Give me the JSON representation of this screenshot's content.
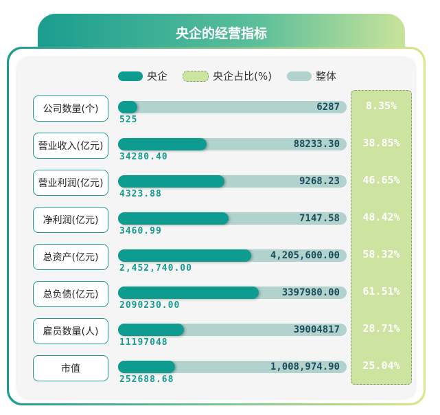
{
  "chart_data": {
    "type": "bar",
    "title": "央企的经营指标",
    "legend": [
      "央企",
      "央企占比(%)",
      "整体"
    ],
    "legend_placement": "top",
    "categories": [
      "公司数量(个)",
      "营业收入(亿元)",
      "营业利润(亿元)",
      "净利润(亿元)",
      "总资产(亿元)",
      "总负债(亿元)",
      "雇员数量(人)",
      "市值"
    ],
    "series": [
      {
        "name": "央企",
        "values": [
          "525",
          "34280.40",
          "4323.88",
          "3460.99",
          "2,452,740.00",
          "2090230.00",
          "11197048",
          "252688.68"
        ]
      },
      {
        "name": "整体",
        "values": [
          "6287",
          "88233.30",
          "9268.23",
          "7147.58",
          "4,205,600.00",
          "3397980.00",
          "39004817",
          "1,008,974.90"
        ]
      },
      {
        "name": "央企占比(%)",
        "values": [
          "8.35%",
          "38.85%",
          "46.65%",
          "48.42%",
          "58.32%",
          "61.51%",
          "28.71%",
          "25.04%"
        ]
      }
    ],
    "share_fraction": [
      0.0835,
      0.3885,
      0.4665,
      0.4842,
      0.5832,
      0.6151,
      0.2871,
      0.2504
    ]
  },
  "colors": {
    "central": "#0e9c91",
    "overall": "#b2d2cd",
    "share": "#cde3a0"
  }
}
